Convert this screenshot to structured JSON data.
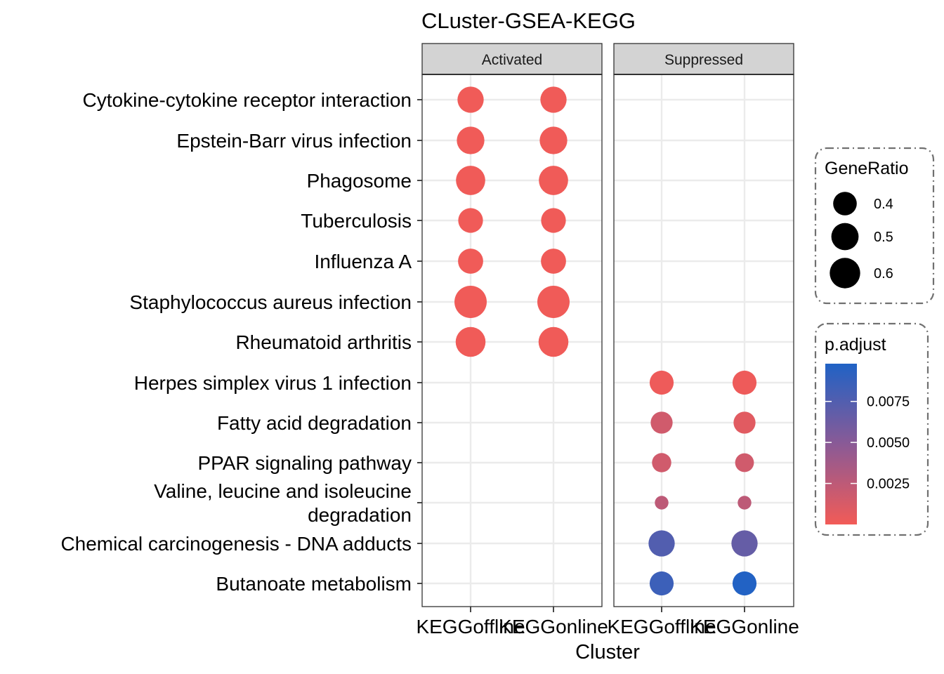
{
  "chart_data": {
    "type": "scatter",
    "title": "CLuster-GSEA-KEGG",
    "xlabel": "Cluster",
    "ylabel": "",
    "facets": [
      "Activated",
      "Suppressed"
    ],
    "x_categories": [
      "KEGGoffline",
      "KEGGonline"
    ],
    "pathways": [
      {
        "label": [
          "Cytokine-cytokine receptor interaction"
        ]
      },
      {
        "label": [
          "Epstein-Barr virus infection"
        ]
      },
      {
        "label": [
          "Phagosome"
        ]
      },
      {
        "label": [
          "Tuberculosis"
        ]
      },
      {
        "label": [
          "Influenza A"
        ]
      },
      {
        "label": [
          "Staphylococcus aureus infection"
        ]
      },
      {
        "label": [
          "Rheumatoid arthritis"
        ]
      },
      {
        "label": [
          "Herpes simplex virus 1 infection"
        ]
      },
      {
        "label": [
          "Fatty acid degradation"
        ]
      },
      {
        "label": [
          "PPAR signaling pathway"
        ]
      },
      {
        "label": [
          "Valine, leucine and isoleucine",
          "degradation"
        ]
      },
      {
        "label": [
          "Chemical carcinogenesis - DNA adducts"
        ]
      },
      {
        "label": [
          "Butanoate metabolism"
        ]
      }
    ],
    "points": [
      {
        "facet": "Activated",
        "cluster": "KEGGoffline",
        "pathway": "Cytokine-cytokine receptor interaction",
        "gene_ratio": 0.47,
        "p_adjust": 0.0001
      },
      {
        "facet": "Activated",
        "cluster": "KEGGonline",
        "pathway": "Cytokine-cytokine receptor interaction",
        "gene_ratio": 0.47,
        "p_adjust": 0.0001
      },
      {
        "facet": "Activated",
        "cluster": "KEGGoffline",
        "pathway": "Epstein-Barr virus infection",
        "gene_ratio": 0.51,
        "p_adjust": 0.0001
      },
      {
        "facet": "Activated",
        "cluster": "KEGGonline",
        "pathway": "Epstein-Barr virus infection",
        "gene_ratio": 0.51,
        "p_adjust": 0.0001
      },
      {
        "facet": "Activated",
        "cluster": "KEGGoffline",
        "pathway": "Phagosome",
        "gene_ratio": 0.56,
        "p_adjust": 0.0001
      },
      {
        "facet": "Activated",
        "cluster": "KEGGonline",
        "pathway": "Phagosome",
        "gene_ratio": 0.56,
        "p_adjust": 0.0001
      },
      {
        "facet": "Activated",
        "cluster": "KEGGoffline",
        "pathway": "Tuberculosis",
        "gene_ratio": 0.43,
        "p_adjust": 0.0001
      },
      {
        "facet": "Activated",
        "cluster": "KEGGonline",
        "pathway": "Tuberculosis",
        "gene_ratio": 0.43,
        "p_adjust": 0.0001
      },
      {
        "facet": "Activated",
        "cluster": "KEGGoffline",
        "pathway": "Influenza A",
        "gene_ratio": 0.44,
        "p_adjust": 0.0001
      },
      {
        "facet": "Activated",
        "cluster": "KEGGonline",
        "pathway": "Influenza A",
        "gene_ratio": 0.44,
        "p_adjust": 0.0001
      },
      {
        "facet": "Activated",
        "cluster": "KEGGoffline",
        "pathway": "Staphylococcus aureus infection",
        "gene_ratio": 0.66,
        "p_adjust": 0.0001
      },
      {
        "facet": "Activated",
        "cluster": "KEGGonline",
        "pathway": "Staphylococcus aureus infection",
        "gene_ratio": 0.66,
        "p_adjust": 0.0001
      },
      {
        "facet": "Activated",
        "cluster": "KEGGoffline",
        "pathway": "Rheumatoid arthritis",
        "gene_ratio": 0.58,
        "p_adjust": 0.0001
      },
      {
        "facet": "Activated",
        "cluster": "KEGGonline",
        "pathway": "Rheumatoid arthritis",
        "gene_ratio": 0.58,
        "p_adjust": 0.0001
      },
      {
        "facet": "Suppressed",
        "cluster": "KEGGoffline",
        "pathway": "Herpes simplex virus 1 infection",
        "gene_ratio": 0.41,
        "p_adjust": 0.0002
      },
      {
        "facet": "Suppressed",
        "cluster": "KEGGonline",
        "pathway": "Herpes simplex virus 1 infection",
        "gene_ratio": 0.41,
        "p_adjust": 0.0002
      },
      {
        "facet": "Suppressed",
        "cluster": "KEGGoffline",
        "pathway": "Fatty acid degradation",
        "gene_ratio": 0.36,
        "p_adjust": 0.0016
      },
      {
        "facet": "Suppressed",
        "cluster": "KEGGonline",
        "pathway": "Fatty acid degradation",
        "gene_ratio": 0.36,
        "p_adjust": 0.0008
      },
      {
        "facet": "Suppressed",
        "cluster": "KEGGoffline",
        "pathway": "PPAR signaling pathway",
        "gene_ratio": 0.3,
        "p_adjust": 0.0016
      },
      {
        "facet": "Suppressed",
        "cluster": "KEGGonline",
        "pathway": "PPAR signaling pathway",
        "gene_ratio": 0.29,
        "p_adjust": 0.0016
      },
      {
        "facet": "Suppressed",
        "cluster": "KEGGoffline",
        "pathway": "Valine, leucine and isoleucine degradation",
        "gene_ratio": 0.2,
        "p_adjust": 0.0025
      },
      {
        "facet": "Suppressed",
        "cluster": "KEGGonline",
        "pathway": "Valine, leucine and isoleucine degradation",
        "gene_ratio": 0.2,
        "p_adjust": 0.0025
      },
      {
        "facet": "Suppressed",
        "cluster": "KEGGoffline",
        "pathway": "Chemical carcinogenesis - DNA adducts",
        "gene_ratio": 0.47,
        "p_adjust": 0.0075
      },
      {
        "facet": "Suppressed",
        "cluster": "KEGGonline",
        "pathway": "Chemical carcinogenesis - DNA adducts",
        "gene_ratio": 0.47,
        "p_adjust": 0.0066
      },
      {
        "facet": "Suppressed",
        "cluster": "KEGGoffline",
        "pathway": "Butanoate metabolism",
        "gene_ratio": 0.41,
        "p_adjust": 0.0085
      },
      {
        "facet": "Suppressed",
        "cluster": "KEGGonline",
        "pathway": "Butanoate metabolism",
        "gene_ratio": 0.41,
        "p_adjust": 0.0097
      }
    ],
    "grid": true,
    "legend_placement": "right",
    "size_legend": {
      "title": "GeneRatio",
      "entries": [
        {
          "label": "0.4",
          "value": 0.4
        },
        {
          "label": "0.5",
          "value": 0.5
        },
        {
          "label": "0.6",
          "value": 0.6
        }
      ]
    },
    "color_legend": {
      "title": "p.adjust",
      "range": [
        0,
        0.0098
      ],
      "low_color": "#F25B57",
      "high_color": "#2062C5",
      "mid_color": "#8A5A96",
      "ticks": [
        {
          "label": "0.0025",
          "value": 0.0025
        },
        {
          "label": "0.0050",
          "value": 0.005
        },
        {
          "label": "0.0075",
          "value": 0.0075
        }
      ]
    },
    "colors": {
      "strip_fill": "#D3D3D3",
      "grid": "#EBEBEB",
      "legend_border": "#707070"
    }
  }
}
